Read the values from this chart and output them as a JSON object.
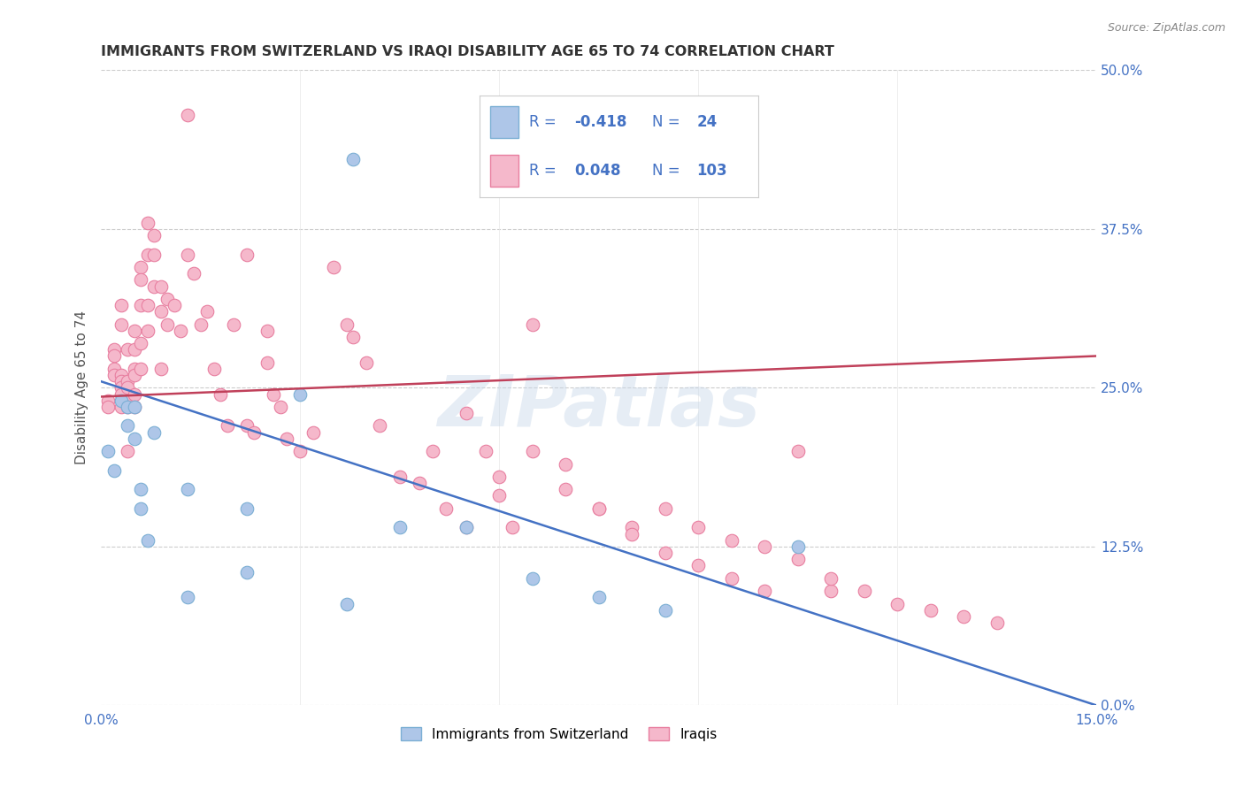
{
  "title": "IMMIGRANTS FROM SWITZERLAND VS IRAQI DISABILITY AGE 65 TO 74 CORRELATION CHART",
  "source": "Source: ZipAtlas.com",
  "ylabel": "Disability Age 65 to 74",
  "xlim": [
    0.0,
    0.15
  ],
  "ylim": [
    0.0,
    0.5
  ],
  "xticks": [
    0.0,
    0.03,
    0.06,
    0.09,
    0.12,
    0.15
  ],
  "xticklabels": [
    "0.0%",
    "",
    "",
    "",
    "",
    "15.0%"
  ],
  "yticks_right": [
    0.0,
    0.125,
    0.25,
    0.375,
    0.5
  ],
  "yticklabels_right": [
    "0.0%",
    "12.5%",
    "25.0%",
    "37.5%",
    "50.0%"
  ],
  "grid_color": "#cccccc",
  "background_color": "#ffffff",
  "watermark": "ZIPatlas",
  "swiss_color": "#aec6e8",
  "swiss_edge_color": "#7bafd4",
  "iraqi_color": "#f5b8cb",
  "iraqi_edge_color": "#e87fa0",
  "swiss_line_color": "#4472c4",
  "iraqi_line_color": "#c0405a",
  "legend_text_color": "#4472c4",
  "legend_r_neg_color": "#c0405a",
  "legend_r_pos_color": "#4472c4",
  "swiss_x": [
    0.001,
    0.002,
    0.003,
    0.004,
    0.004,
    0.005,
    0.005,
    0.006,
    0.006,
    0.007,
    0.008,
    0.013,
    0.013,
    0.022,
    0.022,
    0.03,
    0.037,
    0.038,
    0.045,
    0.055,
    0.065,
    0.075,
    0.085,
    0.105
  ],
  "swiss_y": [
    0.2,
    0.185,
    0.24,
    0.22,
    0.235,
    0.21,
    0.235,
    0.17,
    0.155,
    0.13,
    0.215,
    0.17,
    0.085,
    0.155,
    0.105,
    0.245,
    0.08,
    0.43,
    0.14,
    0.14,
    0.1,
    0.085,
    0.075,
    0.125
  ],
  "iraqi_x": [
    0.001,
    0.001,
    0.002,
    0.002,
    0.002,
    0.002,
    0.003,
    0.003,
    0.003,
    0.003,
    0.003,
    0.003,
    0.003,
    0.004,
    0.004,
    0.004,
    0.004,
    0.004,
    0.004,
    0.005,
    0.005,
    0.005,
    0.005,
    0.005,
    0.005,
    0.006,
    0.006,
    0.006,
    0.006,
    0.006,
    0.007,
    0.007,
    0.007,
    0.007,
    0.008,
    0.008,
    0.008,
    0.009,
    0.009,
    0.009,
    0.01,
    0.01,
    0.011,
    0.012,
    0.013,
    0.013,
    0.014,
    0.015,
    0.016,
    0.017,
    0.018,
    0.019,
    0.02,
    0.022,
    0.022,
    0.023,
    0.025,
    0.025,
    0.026,
    0.027,
    0.028,
    0.03,
    0.032,
    0.035,
    0.037,
    0.038,
    0.04,
    0.042,
    0.045,
    0.048,
    0.05,
    0.052,
    0.055,
    0.058,
    0.06,
    0.062,
    0.065,
    0.07,
    0.075,
    0.08,
    0.085,
    0.09,
    0.095,
    0.1,
    0.105,
    0.11,
    0.055,
    0.06,
    0.065,
    0.07,
    0.075,
    0.08,
    0.085,
    0.09,
    0.095,
    0.1,
    0.105,
    0.11,
    0.115,
    0.12,
    0.125,
    0.13,
    0.135
  ],
  "iraqi_y": [
    0.24,
    0.235,
    0.28,
    0.275,
    0.265,
    0.26,
    0.26,
    0.255,
    0.25,
    0.245,
    0.315,
    0.3,
    0.235,
    0.28,
    0.255,
    0.25,
    0.24,
    0.235,
    0.2,
    0.295,
    0.28,
    0.265,
    0.26,
    0.245,
    0.235,
    0.345,
    0.335,
    0.315,
    0.285,
    0.265,
    0.38,
    0.355,
    0.315,
    0.295,
    0.37,
    0.355,
    0.33,
    0.33,
    0.31,
    0.265,
    0.32,
    0.3,
    0.315,
    0.295,
    0.465,
    0.355,
    0.34,
    0.3,
    0.31,
    0.265,
    0.245,
    0.22,
    0.3,
    0.355,
    0.22,
    0.215,
    0.295,
    0.27,
    0.245,
    0.235,
    0.21,
    0.2,
    0.215,
    0.345,
    0.3,
    0.29,
    0.27,
    0.22,
    0.18,
    0.175,
    0.2,
    0.155,
    0.23,
    0.2,
    0.18,
    0.14,
    0.3,
    0.17,
    0.155,
    0.14,
    0.12,
    0.11,
    0.1,
    0.09,
    0.2,
    0.09,
    0.14,
    0.165,
    0.2,
    0.19,
    0.155,
    0.135,
    0.155,
    0.14,
    0.13,
    0.125,
    0.115,
    0.1,
    0.09,
    0.08,
    0.075,
    0.07,
    0.065
  ]
}
